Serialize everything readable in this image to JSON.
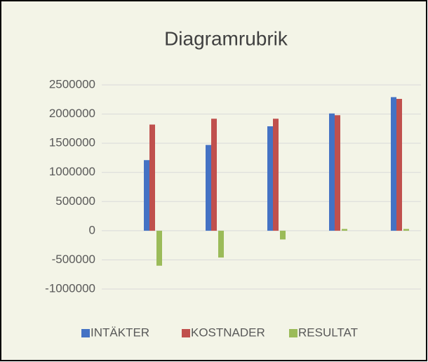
{
  "chart_data": {
    "type": "bar",
    "title": "Diagramrubrik",
    "categories": [
      null,
      null,
      null,
      null,
      null
    ],
    "series": [
      {
        "name": "INTÄKTER",
        "color": "#4472C4",
        "values": [
          1210000,
          1470000,
          1790000,
          2010000,
          2290000
        ]
      },
      {
        "name": "KOSTNADER",
        "color": "#C0504D",
        "values": [
          1820000,
          1920000,
          1920000,
          1980000,
          2260000
        ]
      },
      {
        "name": "RESULTAT",
        "color": "#9BBB59",
        "values": [
          -600000,
          -460000,
          -150000,
          30000,
          30000
        ]
      }
    ],
    "ylim": [
      -1000000,
      2500000
    ],
    "yticks": [
      -1000000,
      -500000,
      0,
      500000,
      1000000,
      1500000,
      2000000,
      2500000
    ],
    "grid": true,
    "legend": "bottom"
  }
}
